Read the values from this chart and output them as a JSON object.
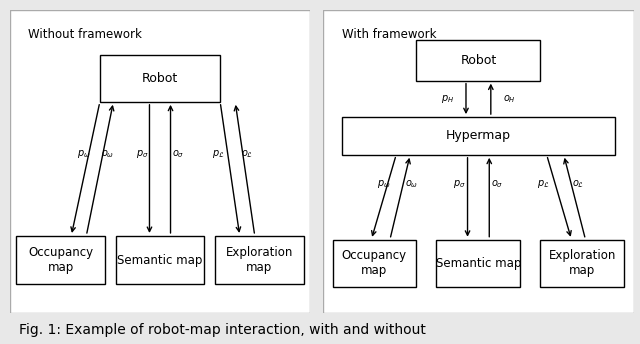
{
  "fig_width": 6.4,
  "fig_height": 3.44,
  "dpi": 100,
  "bg_color": "#e8e8e8",
  "panel_bg": "#ffffff",
  "box_edge": "#000000",
  "text_color": "#000000",
  "left_title": "Without framework",
  "right_title": "With framework",
  "caption": "Fig. 1: Example of robot-map interaction, with and without",
  "font_size_title": 8.5,
  "font_size_box": 9,
  "font_size_label": 7,
  "font_size_caption": 10,
  "panel_border_color": "#999999"
}
